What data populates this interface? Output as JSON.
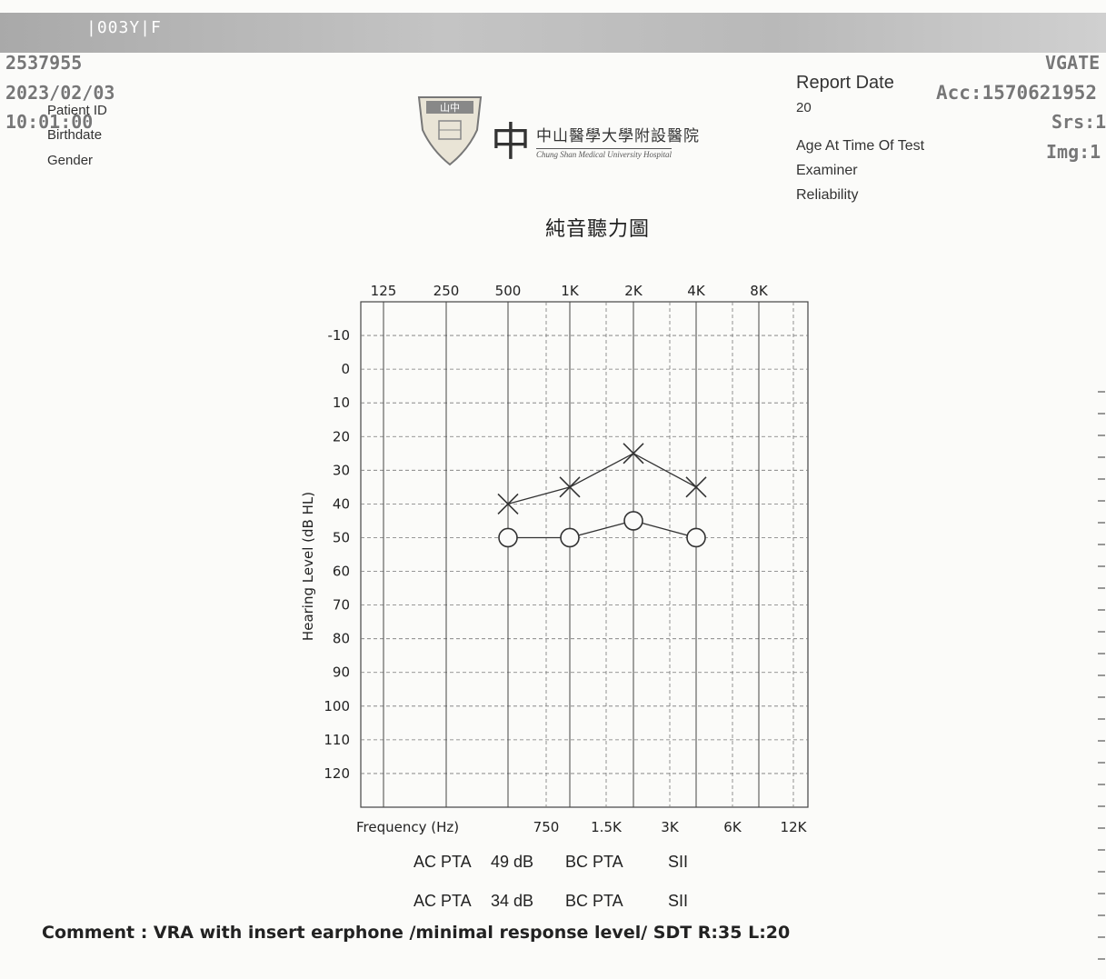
{
  "header": {
    "age_sex": "|003Y|F",
    "patient_number": "2537955",
    "study_date": "2023/02/03",
    "study_time": "10:01:00",
    "vgate": "VGATE",
    "acc": "Acc:1570621952",
    "srs": "Srs:1",
    "img": "Img:1"
  },
  "patient": {
    "patient_id_label": "Patient ID",
    "birthdate_label": "Birthdate",
    "gender_label": "Gender"
  },
  "report": {
    "report_date_label": "Report Date",
    "report_date_value": "20",
    "age_label": "Age At Time Of Test",
    "examiner_label": "Examiner",
    "reliability_label": "Reliability"
  },
  "logo": {
    "seal_text": "山中",
    "chinese_name": "中山醫學大學附設醫院",
    "english_name": "Chung Shan Medical University Hospital"
  },
  "title": "純音聽力圖",
  "chart_data": {
    "type": "line",
    "title": "純音聽力圖",
    "xlabel": "Frequency (Hz)",
    "ylabel": "Hearing Level (dB HL)",
    "top_ticks": [
      "125",
      "250",
      "500",
      "1K",
      "2K",
      "4K",
      "8K"
    ],
    "bottom_ticks": [
      "750",
      "1.5K",
      "3K",
      "6K",
      "12K"
    ],
    "y_ticks": [
      "-10",
      "0",
      "10",
      "20",
      "30",
      "40",
      "50",
      "60",
      "70",
      "80",
      "90",
      "100",
      "110",
      "120"
    ],
    "ylim": [
      -20,
      130
    ],
    "y_inverted": true,
    "grid": true,
    "series": [
      {
        "marker": "X",
        "color": "#333333",
        "x": [
          "500",
          "1K",
          "2K",
          "4K"
        ],
        "values": [
          40,
          35,
          25,
          35
        ]
      },
      {
        "marker": "O",
        "color": "#333333",
        "x": [
          "500",
          "1K",
          "2K",
          "4K"
        ],
        "values": [
          50,
          50,
          45,
          50
        ]
      }
    ]
  },
  "pta_rows": [
    {
      "ac_label": "AC PTA",
      "ac_value": "49 dB",
      "bc_label": "BC PTA",
      "sii_label": "SII"
    },
    {
      "ac_label": "AC PTA",
      "ac_value": "34 dB",
      "bc_label": "BC PTA",
      "sii_label": "SII"
    }
  ],
  "comment": "Comment :  VRA with insert earphone /minimal response level/  SDT  R:35  L:20"
}
